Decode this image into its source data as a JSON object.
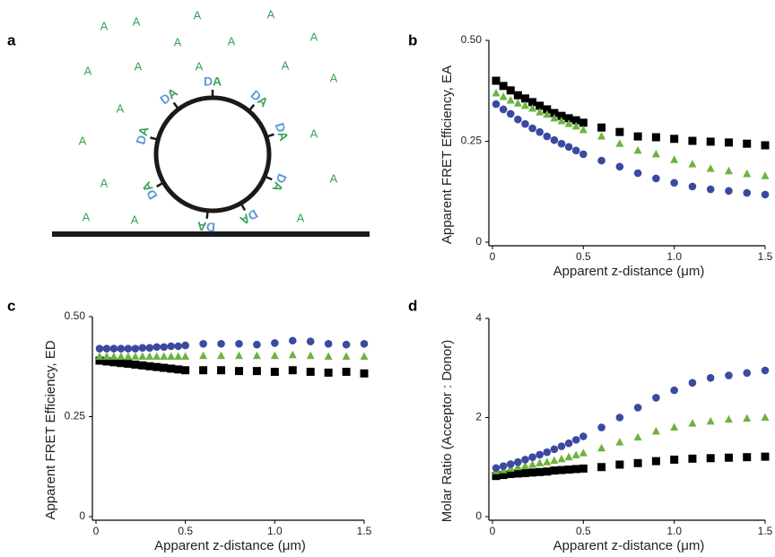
{
  "diagram": {
    "label": "a",
    "free_acceptors": [
      "A",
      "A",
      "A",
      "A",
      "A",
      "A",
      "A",
      "A",
      "A",
      "A",
      "A",
      "A",
      "A",
      "A",
      "A",
      "A",
      "A",
      "A",
      "A",
      "A"
    ],
    "pairs": [
      {
        "donor": "D",
        "acceptor": "A"
      },
      {
        "donor": "D",
        "acceptor": "A"
      },
      {
        "donor": "D",
        "acceptor": "A"
      },
      {
        "donor": "D",
        "acceptor": "A"
      },
      {
        "donor": "D",
        "acceptor": "A"
      },
      {
        "donor": "D",
        "acceptor": "A"
      },
      {
        "donor": "D",
        "acceptor": "A"
      },
      {
        "donor": "D",
        "acceptor": "A"
      },
      {
        "donor": "D",
        "acceptor": "A"
      }
    ]
  },
  "chart_data": [
    {
      "type": "scatter",
      "label": "b",
      "xlabel": "Apparent z-distance (μm)",
      "ylabel": "Apparent FRET Efficiency, EA",
      "x": [
        0.02,
        0.06,
        0.1,
        0.14,
        0.18,
        0.22,
        0.26,
        0.3,
        0.34,
        0.38,
        0.42,
        0.46,
        0.5,
        0.6,
        0.7,
        0.8,
        0.9,
        1.0,
        1.1,
        1.2,
        1.3,
        1.4,
        1.5
      ],
      "xlim": [
        0,
        1.5
      ],
      "xticks": [
        0,
        0.5,
        {
          "value": 1,
          "label": "1.0"
        },
        1.5
      ],
      "ylim": [
        0,
        0.5
      ],
      "yticks": [
        0,
        0.25,
        {
          "value": 0.5,
          "label": "0.50"
        }
      ],
      "series": [
        {
          "color": "#000000",
          "marker": "square",
          "values": [
            0.4,
            0.387,
            0.376,
            0.364,
            0.356,
            0.347,
            0.338,
            0.329,
            0.32,
            0.313,
            0.307,
            0.302,
            0.296,
            0.284,
            0.273,
            0.262,
            0.26,
            0.256,
            0.251,
            0.249,
            0.247,
            0.244,
            0.24
          ]
        },
        {
          "color": "#6db33f",
          "marker": "triangle",
          "values": [
            0.369,
            0.36,
            0.351,
            0.344,
            0.338,
            0.331,
            0.322,
            0.316,
            0.307,
            0.3,
            0.293,
            0.287,
            0.278,
            0.262,
            0.244,
            0.227,
            0.218,
            0.204,
            0.193,
            0.182,
            0.176,
            0.169,
            0.164
          ]
        },
        {
          "color": "#3b4aa0",
          "marker": "circle",
          "values": [
            0.342,
            0.329,
            0.318,
            0.304,
            0.293,
            0.282,
            0.273,
            0.262,
            0.253,
            0.244,
            0.236,
            0.227,
            0.218,
            0.202,
            0.187,
            0.171,
            0.158,
            0.147,
            0.138,
            0.131,
            0.127,
            0.122,
            0.118
          ]
        }
      ]
    },
    {
      "type": "scatter",
      "label": "c",
      "xlabel": "Apparent z-distance (μm)",
      "ylabel": "Apparent FRET Efficiency, ED",
      "x": [
        0.02,
        0.06,
        0.1,
        0.14,
        0.18,
        0.22,
        0.26,
        0.3,
        0.34,
        0.38,
        0.42,
        0.46,
        0.5,
        0.6,
        0.7,
        0.8,
        0.9,
        1.0,
        1.1,
        1.2,
        1.3,
        1.4,
        1.5
      ],
      "xlim": [
        0,
        1.5
      ],
      "xticks": [
        0,
        0.5,
        {
          "value": 1,
          "label": "1.0"
        },
        1.5
      ],
      "ylim": [
        0,
        0.5
      ],
      "yticks": [
        0,
        0.25,
        {
          "value": 0.5,
          "label": "0.50"
        }
      ],
      "series": [
        {
          "color": "#000000",
          "marker": "square",
          "values": [
            0.39,
            0.388,
            0.386,
            0.384,
            0.382,
            0.38,
            0.378,
            0.376,
            0.374,
            0.372,
            0.37,
            0.368,
            0.366,
            0.366,
            0.366,
            0.364,
            0.364,
            0.362,
            0.366,
            0.362,
            0.36,
            0.362,
            0.358
          ]
        },
        {
          "color": "#6db33f",
          "marker": "triangle",
          "values": [
            0.4,
            0.4,
            0.4,
            0.4,
            0.4,
            0.4,
            0.4,
            0.4,
            0.4,
            0.4,
            0.4,
            0.4,
            0.4,
            0.402,
            0.402,
            0.402,
            0.402,
            0.402,
            0.404,
            0.402,
            0.4,
            0.4,
            0.4
          ]
        },
        {
          "color": "#3b4aa0",
          "marker": "circle",
          "values": [
            0.42,
            0.42,
            0.42,
            0.42,
            0.42,
            0.42,
            0.422,
            0.422,
            0.424,
            0.424,
            0.426,
            0.426,
            0.428,
            0.432,
            0.432,
            0.432,
            0.43,
            0.434,
            0.44,
            0.438,
            0.432,
            0.43,
            0.432
          ]
        }
      ]
    },
    {
      "type": "scatter",
      "label": "d",
      "xlabel": "Apparent z-distance (μm)",
      "ylabel": "Molar Ratio (Acceptor : Donor)",
      "x": [
        0.02,
        0.06,
        0.1,
        0.14,
        0.18,
        0.22,
        0.26,
        0.3,
        0.34,
        0.38,
        0.42,
        0.46,
        0.5,
        0.6,
        0.7,
        0.8,
        0.9,
        1.0,
        1.1,
        1.2,
        1.3,
        1.4,
        1.5
      ],
      "xlim": [
        0,
        1.5
      ],
      "xticks": [
        0,
        0.5,
        {
          "value": 1,
          "label": "1.0"
        },
        1.5
      ],
      "ylim": [
        0,
        4
      ],
      "yticks": [
        0,
        2,
        4
      ],
      "series": [
        {
          "color": "#000000",
          "marker": "square",
          "values": [
            0.82,
            0.84,
            0.86,
            0.87,
            0.88,
            0.89,
            0.9,
            0.91,
            0.93,
            0.94,
            0.95,
            0.96,
            0.97,
            1.0,
            1.05,
            1.08,
            1.12,
            1.15,
            1.17,
            1.18,
            1.19,
            1.2,
            1.21
          ]
        },
        {
          "color": "#6db33f",
          "marker": "triangle",
          "values": [
            0.92,
            0.94,
            0.97,
            1.0,
            1.02,
            1.05,
            1.08,
            1.1,
            1.13,
            1.16,
            1.2,
            1.24,
            1.28,
            1.38,
            1.5,
            1.6,
            1.72,
            1.8,
            1.88,
            1.92,
            1.96,
            1.98,
            2.0
          ]
        },
        {
          "color": "#3b4aa0",
          "marker": "circle",
          "values": [
            0.98,
            1.02,
            1.06,
            1.1,
            1.15,
            1.2,
            1.25,
            1.3,
            1.36,
            1.42,
            1.48,
            1.55,
            1.62,
            1.8,
            2.0,
            2.2,
            2.4,
            2.55,
            2.7,
            2.8,
            2.85,
            2.9,
            2.95
          ]
        }
      ]
    }
  ]
}
